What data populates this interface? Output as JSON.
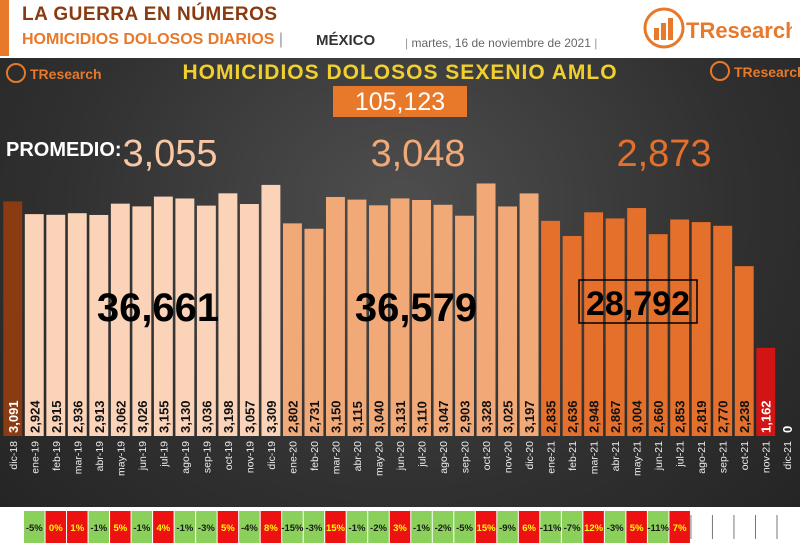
{
  "header": {
    "title": "LA GUERRA EN NÚMEROS",
    "subtitle": "HOMICIDIOS DOLOSOS DIARIOS",
    "country": "MÉXICO",
    "date": "martes, 16 de noviembre de 2021",
    "logo_text": "TResearch"
  },
  "chart_data": {
    "type": "bar",
    "title": "HOMICIDIOS DOLOSOS SEXENIO AMLO",
    "total": "105,123",
    "promedio_label": "PROMEDIO:",
    "averages": [
      "3,055",
      "3,048",
      "2,873"
    ],
    "period_totals": [
      "36,661",
      "36,579",
      "28,792"
    ],
    "categories": [
      "dic-18",
      "ene-19",
      "feb-19",
      "mar-19",
      "abr-19",
      "may-19",
      "jun-19",
      "jul-19",
      "ago-19",
      "sep-19",
      "oct-19",
      "nov-19",
      "dic-19",
      "ene-20",
      "feb-20",
      "mar-20",
      "abr-20",
      "may-20",
      "jun-20",
      "jul-20",
      "ago-20",
      "sep-20",
      "oct-20",
      "nov-20",
      "dic-20",
      "ene-21",
      "feb-21",
      "mar-21",
      "abr-21",
      "may-21",
      "jun-21",
      "jul-21",
      "ago-21",
      "sep-21",
      "oct-21",
      "nov-21",
      "dic-21"
    ],
    "values": [
      3091,
      2924,
      2915,
      2936,
      2913,
      3062,
      3026,
      3155,
      3130,
      3036,
      3198,
      3057,
      3309,
      2802,
      2731,
      3150,
      3115,
      3040,
      3131,
      3110,
      3047,
      2903,
      3328,
      3025,
      3197,
      2835,
      2636,
      2948,
      2867,
      3004,
      2660,
      2853,
      2819,
      2770,
      2238,
      1162,
      0
    ],
    "value_labels": [
      "3,091",
      "2,924",
      "2,915",
      "2,936",
      "2,913",
      "3,062",
      "3,026",
      "3,155",
      "3,130",
      "3,036",
      "3,198",
      "3,057",
      "3,309",
      "2,802",
      "2,731",
      "3,150",
      "3,115",
      "3,040",
      "3,131",
      "3,110",
      "3,047",
      "2,903",
      "3,328",
      "3,025",
      "3,197",
      "2,835",
      "2,636",
      "2,948",
      "2,867",
      "3,004",
      "2,660",
      "2,853",
      "2,819",
      "2,770",
      "2,238",
      "1,162",
      "0"
    ],
    "groups": [
      0,
      1,
      1,
      1,
      1,
      1,
      1,
      1,
      1,
      1,
      1,
      1,
      1,
      2,
      2,
      2,
      2,
      2,
      2,
      2,
      2,
      2,
      2,
      2,
      2,
      3,
      3,
      3,
      3,
      3,
      3,
      3,
      3,
      3,
      3,
      4,
      5
    ],
    "pct_changes": [
      "",
      "-5%",
      "0%",
      "1%",
      "-1%",
      "5%",
      "-1%",
      "4%",
      "-1%",
      "-3%",
      "5%",
      "-4%",
      "8%",
      "-15%",
      "-3%",
      "15%",
      "-1%",
      "-2%",
      "3%",
      "-1%",
      "-2%",
      "-5%",
      "15%",
      "-9%",
      "6%",
      "-11%",
      "-7%",
      "12%",
      "-3%",
      "5%",
      "-11%",
      "7%",
      "",
      "",
      "",
      "",
      ""
    ],
    "pct_signs": [
      "",
      "neg",
      "pos",
      "pos",
      "neg",
      "pos",
      "neg",
      "pos",
      "neg",
      "neg",
      "pos",
      "neg",
      "pos",
      "neg",
      "neg",
      "pos",
      "neg",
      "neg",
      "pos",
      "neg",
      "neg",
      "neg",
      "pos",
      "neg",
      "pos",
      "neg",
      "neg",
      "pos",
      "neg",
      "pos",
      "neg",
      "pos",
      "",
      "",
      "",
      "",
      ""
    ],
    "ylim": [
      0,
      3400
    ],
    "colors": {
      "group0": "#8b3b12",
      "group1": "#fbd3b8",
      "group2": "#f2a978",
      "group3": "#e5702b",
      "group4": "#d21414",
      "title_text": "#f0cf2e",
      "total_bg": "#e8782a",
      "avg1": "#f8c8a6",
      "avg2": "#f2a978",
      "avg3": "#e5702b",
      "pos": "#ee1111",
      "neg": "#8ad05a",
      "pos_text": "#ffff00",
      "neg_text": "#1a1a1a"
    }
  }
}
